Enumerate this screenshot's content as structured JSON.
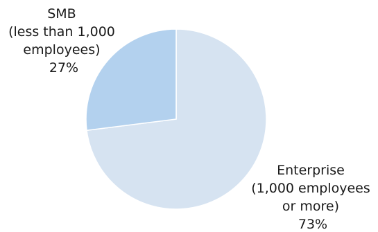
{
  "chart_data": {
    "type": "pie",
    "slices": [
      {
        "label_lines": [
          "Enterprise",
          "(1,000 employees",
          "or more)"
        ],
        "value": 73,
        "value_label": "73%",
        "color": "#d6e3f1"
      },
      {
        "label_lines": [
          "SMB",
          "(less than 1,000",
          "employees)"
        ],
        "value": 27,
        "value_label": "27%",
        "color": "#b3d1ee"
      }
    ],
    "start_angle_deg": 0,
    "direction": "clockwise",
    "legend": "none"
  }
}
